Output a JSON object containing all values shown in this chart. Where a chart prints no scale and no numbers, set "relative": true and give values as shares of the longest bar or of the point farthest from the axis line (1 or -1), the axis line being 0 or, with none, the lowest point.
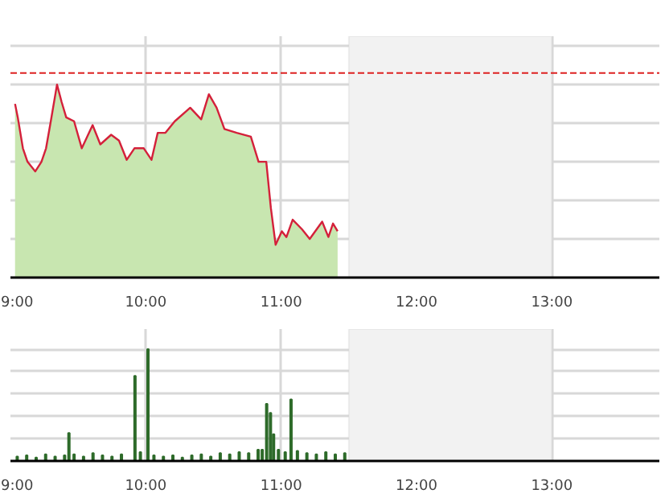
{
  "chart_data": [
    {
      "type": "area",
      "relative": true,
      "grid": true,
      "xlim": [
        9.0,
        13.8
      ],
      "xticks": [
        {
          "value": 9,
          "label": "9:00"
        },
        {
          "value": 10,
          "label": "10:00"
        },
        {
          "value": 11,
          "label": "11:00"
        },
        {
          "value": 12,
          "label": "12:00"
        },
        {
          "value": 13,
          "label": "13:00"
        }
      ],
      "ref_lines": [
        {
          "axis": "y",
          "value": 1.06,
          "label": null,
          "color": "#dd2222",
          "line_style": "dashed"
        }
      ],
      "bands": [
        {
          "axis": "x",
          "from": 11.5,
          "to": 13.0,
          "label": null,
          "color": "#f2f2f2"
        }
      ],
      "series": [
        {
          "type": "area",
          "color": "#c8e6b0",
          "x": [
            9.034,
            9.054,
            9.092,
            9.126,
            9.183,
            9.229,
            9.263,
            9.298,
            9.344,
            9.378,
            9.412,
            9.47,
            9.527,
            9.607,
            9.664,
            9.744,
            9.802,
            9.859,
            9.916,
            9.985,
            10.042,
            10.088,
            10.145,
            10.214,
            10.328,
            10.409,
            10.466,
            10.523,
            10.581,
            10.672,
            10.776,
            10.833,
            10.89,
            10.924,
            10.959,
            11.005,
            11.039,
            11.085,
            11.154,
            11.211,
            11.303,
            11.349,
            11.383,
            11.417
          ],
          "values": [
            0.9,
            0.83,
            0.67,
            0.6,
            0.55,
            0.6,
            0.67,
            0.81,
            1.0,
            0.91,
            0.83,
            0.81,
            0.67,
            0.79,
            0.69,
            0.74,
            0.71,
            0.61,
            0.67,
            0.67,
            0.61,
            0.75,
            0.75,
            0.81,
            0.88,
            0.82,
            0.95,
            0.88,
            0.77,
            0.75,
            0.73,
            0.6,
            0.6,
            0.36,
            0.17,
            0.24,
            0.21,
            0.3,
            0.25,
            0.2,
            0.29,
            0.21,
            0.28,
            0.24
          ]
        },
        {
          "type": "line",
          "color": "#d4203a",
          "x": [
            9.034,
            9.054,
            9.092,
            9.126,
            9.183,
            9.229,
            9.263,
            9.298,
            9.344,
            9.378,
            9.412,
            9.47,
            9.527,
            9.607,
            9.664,
            9.744,
            9.802,
            9.859,
            9.916,
            9.985,
            10.042,
            10.088,
            10.145,
            10.214,
            10.328,
            10.409,
            10.466,
            10.523,
            10.581,
            10.672,
            10.776,
            10.833,
            10.89,
            10.924,
            10.959,
            11.005,
            11.039,
            11.085,
            11.154,
            11.211,
            11.303,
            11.349,
            11.383,
            11.417
          ],
          "values": [
            0.9,
            0.83,
            0.67,
            0.6,
            0.55,
            0.6,
            0.67,
            0.81,
            1.0,
            0.91,
            0.83,
            0.81,
            0.67,
            0.79,
            0.69,
            0.74,
            0.71,
            0.61,
            0.67,
            0.67,
            0.61,
            0.75,
            0.75,
            0.81,
            0.88,
            0.82,
            0.95,
            0.88,
            0.77,
            0.75,
            0.73,
            0.6,
            0.6,
            0.36,
            0.17,
            0.24,
            0.21,
            0.3,
            0.25,
            0.2,
            0.29,
            0.21,
            0.28,
            0.24
          ]
        }
      ]
    },
    {
      "type": "bar",
      "relative": true,
      "grid": true,
      "xlim": [
        9.0,
        13.8
      ],
      "xticks": [
        {
          "value": 9,
          "label": "9:00"
        },
        {
          "value": 10,
          "label": "10:00"
        },
        {
          "value": 11,
          "label": "11:00"
        },
        {
          "value": 12,
          "label": "12:00"
        },
        {
          "value": 13,
          "label": "13:00"
        }
      ],
      "bands": [
        {
          "axis": "x",
          "from": 11.5,
          "to": 13.0,
          "label": null,
          "color": "#f2f2f2"
        }
      ],
      "series": [
        {
          "color": "#2e6b2a",
          "x": [
            9.05,
            9.12,
            9.19,
            9.26,
            9.33,
            9.4,
            9.432,
            9.47,
            9.54,
            9.61,
            9.68,
            9.75,
            9.82,
            9.92,
            9.96,
            10.016,
            10.06,
            10.13,
            10.2,
            10.27,
            10.34,
            10.41,
            10.48,
            10.55,
            10.62,
            10.69,
            10.76,
            10.83,
            10.86,
            10.893,
            10.921,
            10.944,
            10.98,
            11.03,
            11.073,
            11.12,
            11.19,
            11.26,
            11.33,
            11.4,
            11.47
          ],
          "values": [
            0.04,
            0.05,
            0.03,
            0.06,
            0.04,
            0.05,
            0.25,
            0.06,
            0.04,
            0.07,
            0.05,
            0.04,
            0.06,
            0.76,
            0.08,
            1.0,
            0.05,
            0.04,
            0.05,
            0.03,
            0.05,
            0.06,
            0.04,
            0.07,
            0.06,
            0.08,
            0.07,
            0.1,
            0.1,
            0.51,
            0.43,
            0.24,
            0.1,
            0.08,
            0.55,
            0.09,
            0.07,
            0.06,
            0.08,
            0.06,
            0.07
          ]
        }
      ]
    }
  ]
}
